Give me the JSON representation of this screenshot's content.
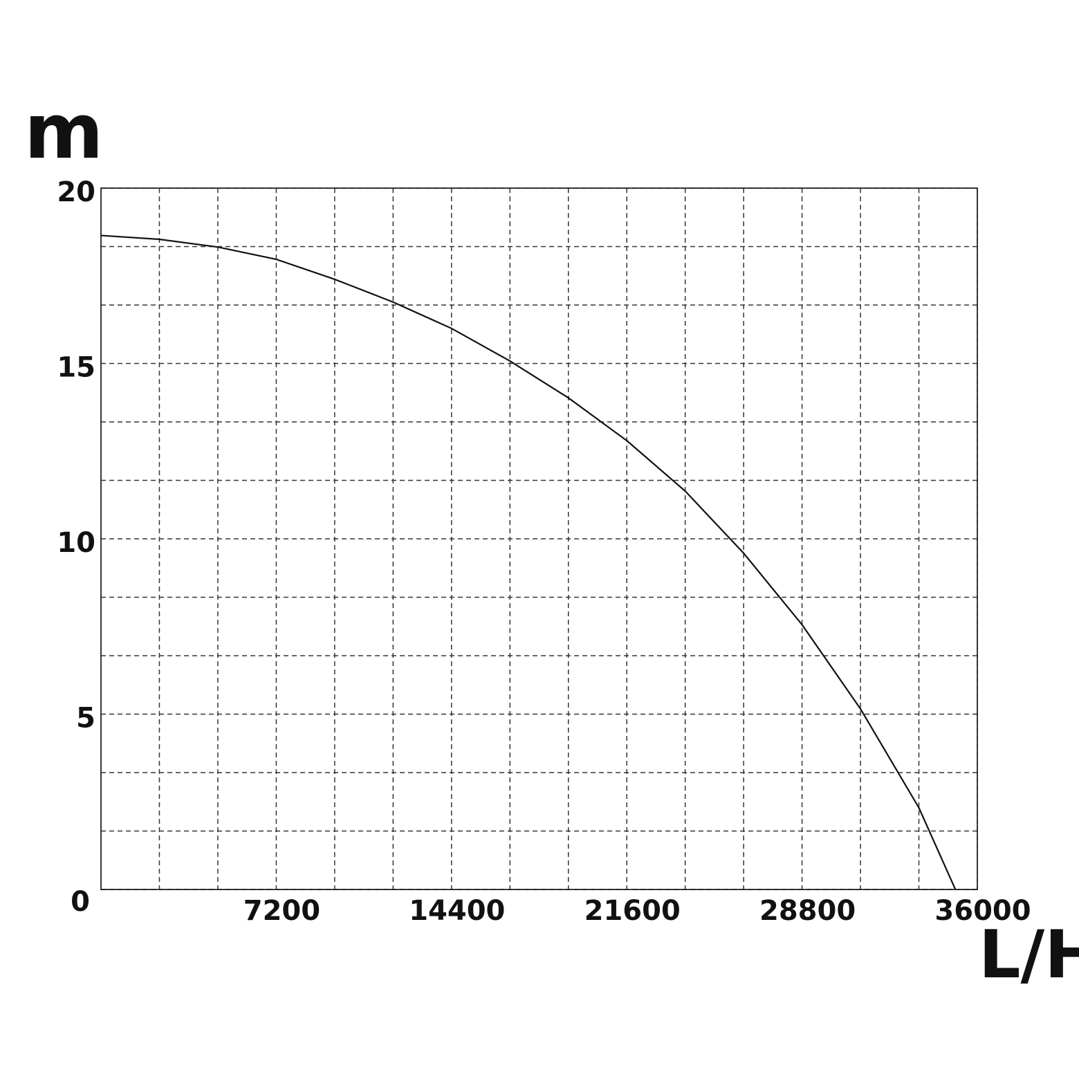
{
  "chart_data": {
    "type": "line",
    "y_label": "m",
    "x_label": "L/H",
    "x": [
      0,
      2400,
      4800,
      7200,
      9600,
      12000,
      14400,
      16800,
      19200,
      21600,
      24000,
      26400,
      28800,
      31200,
      33600,
      35100
    ],
    "series": [
      {
        "color": "#111111",
        "values": [
          18.65,
          18.54,
          18.32,
          17.97,
          17.4,
          16.75,
          16.0,
          15.07,
          14.02,
          12.8,
          11.36,
          9.59,
          7.55,
          5.15,
          2.33,
          0
        ]
      }
    ],
    "xlim": [
      0,
      36000
    ],
    "xticks": [
      7200,
      14400,
      21600,
      28800,
      36000
    ],
    "ylim": [
      0,
      20
    ],
    "yticks": [
      0,
      5,
      10,
      15,
      20
    ],
    "grid": true,
    "grid_subdivisions": 3
  }
}
